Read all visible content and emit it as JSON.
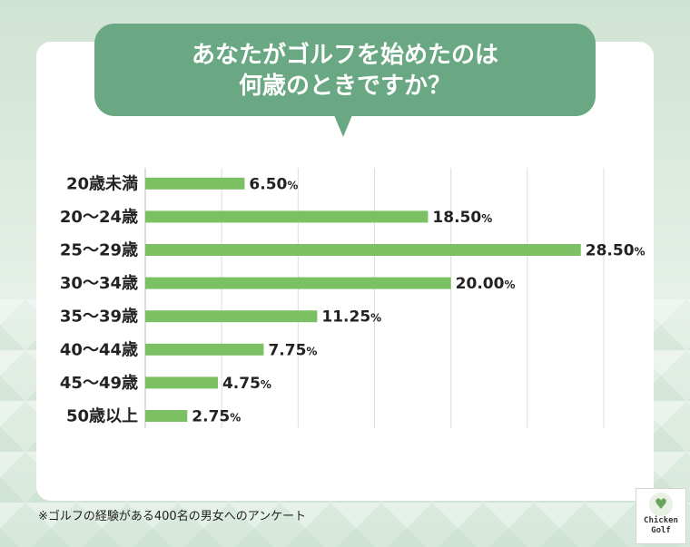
{
  "header": {
    "title_line1": "あなたがゴルフを始めたのは",
    "title_line2": "何歳のときですか？"
  },
  "footnote": "※ゴルフの経験がある400名の男女へのアンケート",
  "logo": {
    "icon": "chicken-icon",
    "line1": "Chicken",
    "line2": "Golf"
  },
  "colors": {
    "accent": "#6aa883",
    "bar": "#7bc063",
    "grid": "#dcdcdc"
  },
  "chart_data": {
    "type": "bar",
    "orientation": "horizontal",
    "categories": [
      "20歳未満",
      "20〜24歳",
      "25〜29歳",
      "30〜34歳",
      "35〜39歳",
      "40〜44歳",
      "45〜49歳",
      "50歳以上"
    ],
    "values": [
      6.5,
      18.5,
      28.5,
      20.0,
      11.25,
      7.75,
      4.75,
      2.75
    ],
    "value_labels": [
      "6.50",
      "18.50",
      "28.50",
      "20.00",
      "11.25",
      "7.75",
      "4.75",
      "2.75"
    ],
    "unit": "%",
    "xlim": [
      0,
      30
    ],
    "grid": true
  }
}
